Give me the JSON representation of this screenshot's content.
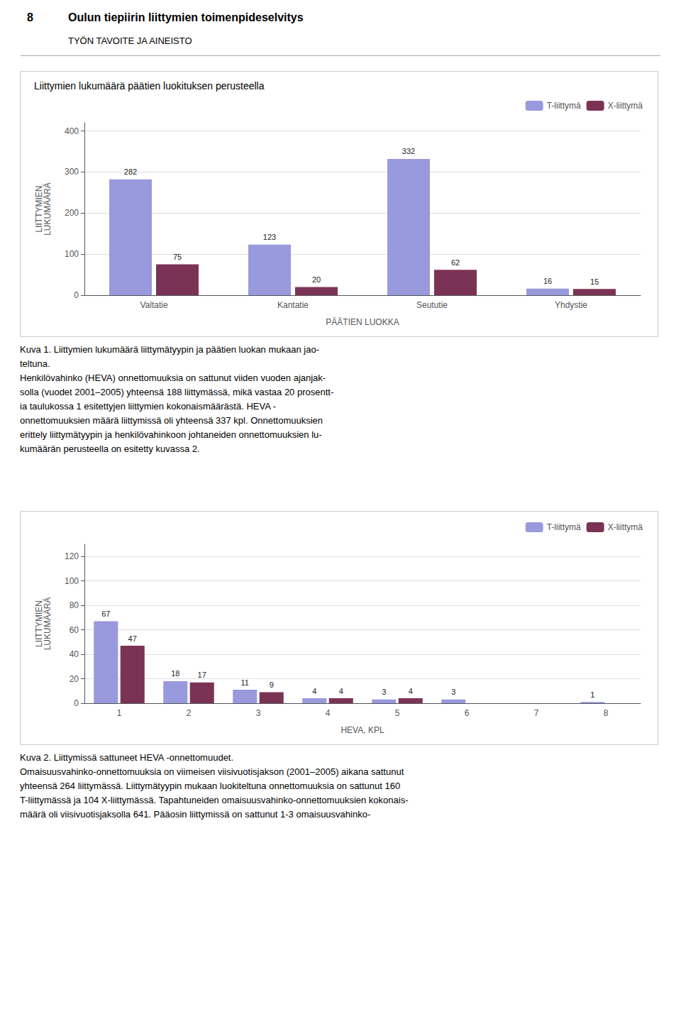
{
  "title": "Oulun tiepiirin liittymien toimenpideselvitys",
  "subtitle": "TYÖN TAVOITE JA AINEISTO",
  "annotations": [
    "8"
  ],
  "chart_data": [
    {
      "type": "bar",
      "title": "Liittymien lukumäärä päätien luokituksen perusteella",
      "categories": [
        "Valtatie",
        "Kantatie",
        "Seututie",
        "Yhdystie"
      ],
      "series": [
        {
          "name": "T-liittymä",
          "color": "#9999dd",
          "values": [
            282,
            123,
            332,
            16
          ]
        },
        {
          "name": "X-liittymä",
          "color": "#7b3355",
          "values": [
            75,
            20,
            62,
            15
          ]
        }
      ],
      "xlabel": "PÄÄTIEN LUOKKA",
      "ylabel": "LIITTYMIEN\nLUKUMÄÄRÄ",
      "ylim": [
        0,
        420
      ],
      "yticks": [
        0,
        100,
        200,
        300,
        400
      ],
      "grid": true,
      "legend": "upper right",
      "data_labels": true,
      "annotations": [
        "Kuva 1. Liittymien lukumäärä liittymätyypin ja päätien luokan mukaan jao-",
        "teltuna.",
        "Henkilövahinko (HEVA) onnettomuuksia on sattunut viiden vuoden ajanjak-",
        "solla (vuodet 2001–2005) yhteensä 188 liittymässä, mikä vastaa 20 prosentt-",
        "ia taulukossa 1 esitettyjen liittymien kokonaismäärästä. HEVA -",
        "onnettomuuksien määrä liittymissä oli yhteensä 337 kpl. Onnettomuuksien",
        "erittely liittymätyypin ja henkilövahinkoon johtaneiden onnettomuuksien lu-",
        "kumäärän perusteella on esitetty kuvassa 2."
      ]
    },
    {
      "type": "bar",
      "categories": [
        "1",
        "2",
        "3",
        "4",
        "5",
        "6",
        "7",
        "8"
      ],
      "series": [
        {
          "name": "T-liittymä",
          "color": "#9999dd",
          "values": [
            67,
            18,
            11,
            4,
            3,
            3,
            0,
            1
          ],
          "value_labels": [
            "67",
            "18",
            "11",
            "4",
            "3",
            "3",
            null,
            "1"
          ]
        },
        {
          "name": "X-liittymä",
          "color": "#7b3355",
          "values": [
            47,
            17,
            9,
            4,
            4,
            0,
            0,
            0
          ],
          "value_labels": [
            "47",
            "17",
            "9",
            "4",
            "4",
            null,
            null,
            null
          ]
        }
      ],
      "xlabel": "HEVA, KPL",
      "ylabel": "LIITTYMIEN\nLUKUMÄÄRÄ",
      "ylim": [
        0,
        130
      ],
      "yticks": [
        0,
        20,
        40,
        60,
        80,
        100,
        120
      ],
      "grid": true,
      "legend": "upper right",
      "data_labels": true,
      "annotations": [
        "Kuva 2. Liittymissä sattuneet HEVA -onnettomuudet.",
        "Omaisuusvahinko-onnettomuuksia on viimeisen viisivuotisjakson (2001–2005) aikana sattunut",
        "yhteensä 264 liittymässä. Liittymätyypin mukaan luokiteltuna onnettomuuksia on sattunut 160",
        "T-liittymässä ja 104 X-liittymässä. Tapahtuneiden omaisuusvahinko-onnettomuuksien kokonais-",
        "määrä oli viisivuotisjaksolla 641. Pääosin liittymissä on sattunut 1-3 omaisuusvahinko-"
      ]
    }
  ]
}
